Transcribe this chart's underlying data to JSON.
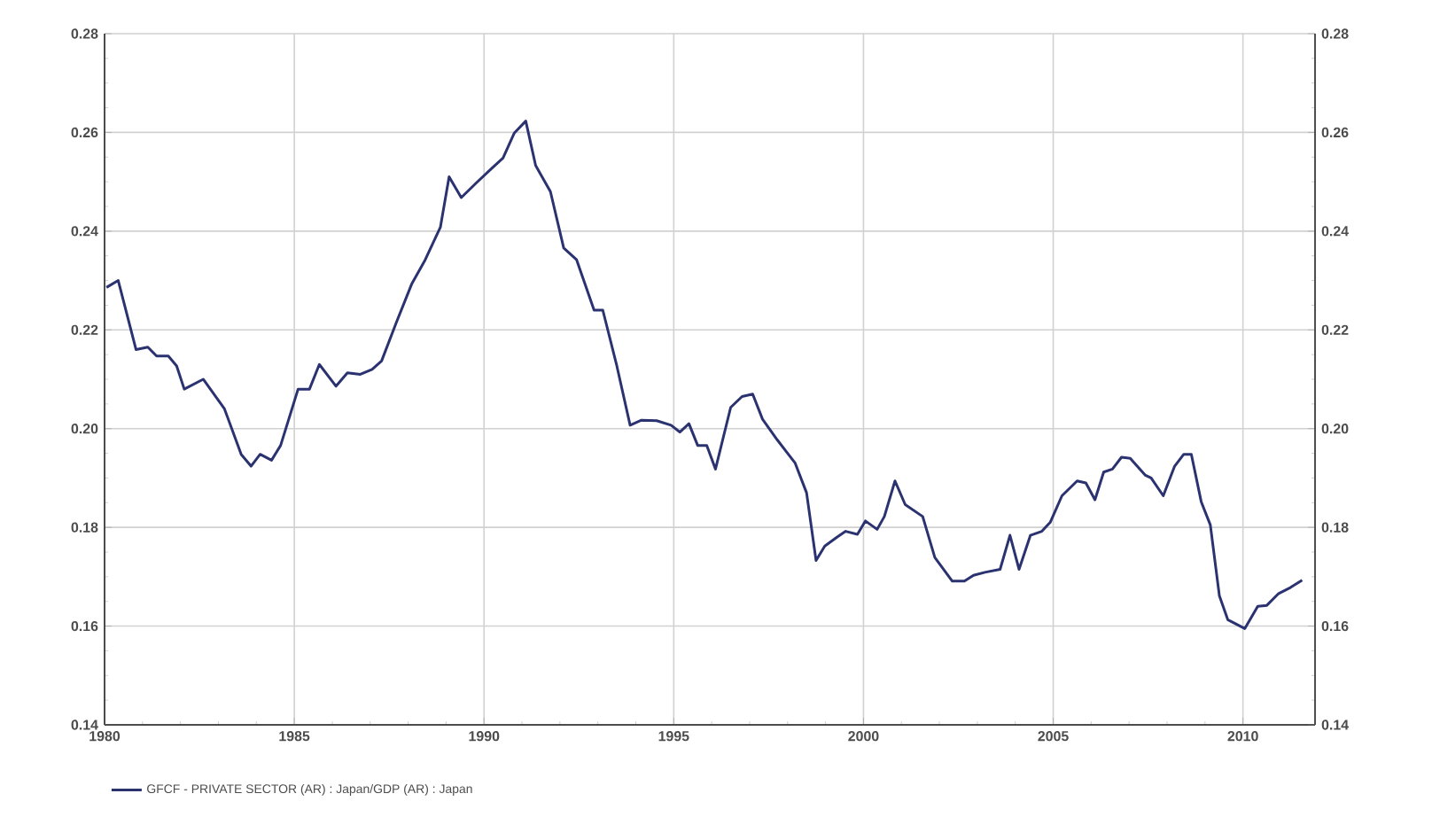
{
  "chart_data": {
    "type": "line",
    "x": [
      1980.05,
      1980.36,
      1980.83,
      1981.14,
      1981.37,
      1981.68,
      1981.9,
      1982.1,
      1982.6,
      1983.16,
      1983.6,
      1983.86,
      1984.1,
      1984.4,
      1984.64,
      1985.1,
      1985.4,
      1985.66,
      1986.1,
      1986.4,
      1986.74,
      1987.05,
      1987.3,
      1987.7,
      1988.1,
      1988.45,
      1988.85,
      1989.08,
      1989.4,
      1989.8,
      1990.2,
      1990.5,
      1990.8,
      1991.1,
      1991.36,
      1991.75,
      1992.1,
      1992.44,
      1992.9,
      1993.13,
      1993.5,
      1993.85,
      1994.15,
      1994.55,
      1994.93,
      1995.16,
      1995.4,
      1995.63,
      1995.87,
      1996.1,
      1996.5,
      1996.8,
      1997.08,
      1997.34,
      1997.73,
      1998.2,
      1998.5,
      1998.75,
      1998.98,
      1999.3,
      1999.53,
      1999.84,
      2000.05,
      2000.36,
      2000.55,
      2000.83,
      2001.1,
      2001.56,
      2001.88,
      2002.34,
      2002.66,
      2002.9,
      2003.2,
      2003.6,
      2003.86,
      2004.1,
      2004.4,
      2004.7,
      2004.92,
      2005.23,
      2005.63,
      2005.86,
      2006.1,
      2006.33,
      2006.56,
      2006.8,
      2007.03,
      2007.42,
      2007.58,
      2007.9,
      2008.2,
      2008.44,
      2008.64,
      2008.9,
      2009.14,
      2009.38,
      2009.6,
      2010.05,
      2010.39,
      2010.63,
      2010.94,
      2011.25,
      2011.56
    ],
    "series": [
      {
        "name": "GFCF - PRIVATE SECTOR (AR) : Japan/GDP (AR) : Japan",
        "color": "#2b3270",
        "values": [
          0.2286,
          0.23,
          0.216,
          0.2165,
          0.2147,
          0.2147,
          0.2127,
          0.208,
          0.21,
          0.204,
          0.1948,
          0.1924,
          0.1948,
          0.1936,
          0.1966,
          0.208,
          0.208,
          0.213,
          0.2086,
          0.2113,
          0.211,
          0.212,
          0.2137,
          0.2217,
          0.2294,
          0.2342,
          0.2408,
          0.251,
          0.2468,
          0.2498,
          0.2527,
          0.2548,
          0.2599,
          0.2623,
          0.2533,
          0.248,
          0.2366,
          0.2342,
          0.224,
          0.224,
          0.2127,
          0.2007,
          0.2017,
          0.2016,
          0.2007,
          0.1993,
          0.201,
          0.1966,
          0.1966,
          0.1918,
          0.2043,
          0.2065,
          0.207,
          0.2019,
          0.1977,
          0.193,
          0.187,
          0.1733,
          0.1762,
          0.178,
          0.1792,
          0.1786,
          0.1813,
          0.1796,
          0.1822,
          0.1894,
          0.1846,
          0.1822,
          0.1739,
          0.1691,
          0.1691,
          0.1703,
          0.1709,
          0.1715,
          0.1784,
          0.1715,
          0.1784,
          0.1792,
          0.181,
          0.1864,
          0.1894,
          0.189,
          0.1856,
          0.1912,
          0.1918,
          0.1942,
          0.194,
          0.1906,
          0.19,
          0.1864,
          0.1924,
          0.1948,
          0.1948,
          0.1852,
          0.1805,
          0.1661,
          0.1613,
          0.1595,
          0.164,
          0.1642,
          0.1666,
          0.1678,
          0.1693
        ]
      }
    ],
    "xlim": [
      1980,
      2011.9
    ],
    "xticks": [
      1980,
      1985,
      1990,
      1995,
      2000,
      2005,
      2010
    ],
    "ylim": [
      0.14,
      0.28
    ],
    "yticks": [
      0.14,
      0.16,
      0.18,
      {
        "value": 0.2,
        "label": "0.20"
      },
      0.22,
      0.24,
      0.26,
      0.28
    ],
    "y2lim": [
      0.14,
      0.28
    ],
    "y2ticks": [
      0.14,
      0.16,
      0.18,
      {
        "value": 0.2,
        "label": "0.20"
      },
      0.22,
      0.24,
      0.26,
      0.28
    ],
    "grid": true,
    "legend": "bottom left",
    "marker": "none",
    "line_style": "solid"
  }
}
